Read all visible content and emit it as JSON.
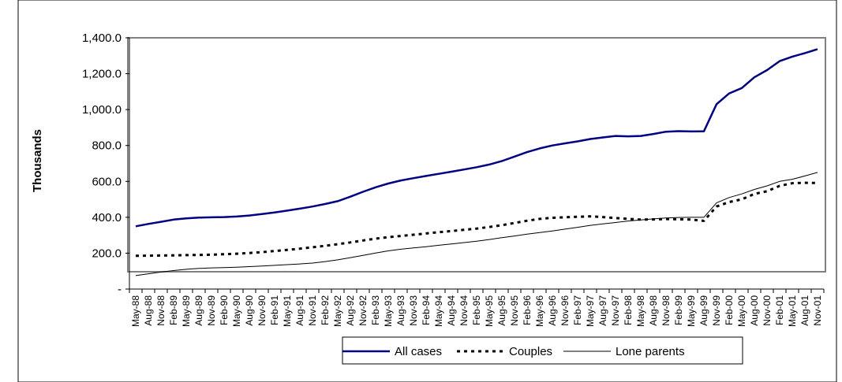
{
  "chart_data": {
    "type": "line",
    "title": "",
    "xlabel": "",
    "ylabel": "Thousands",
    "ylim": [
      0,
      1400
    ],
    "y_ticks": [
      0,
      200,
      400,
      600,
      800,
      1000,
      1200,
      1400
    ],
    "y_tick_labels": [
      "-",
      "200.0",
      "400.0",
      "600.0",
      "800.0",
      "1,000.0",
      "1,200.0",
      "1,400.0"
    ],
    "categories": [
      "May-88",
      "Aug-88",
      "Nov-88",
      "Feb-89",
      "May-89",
      "Aug-89",
      "Nov-89",
      "Feb-90",
      "May-90",
      "Aug-90",
      "Nov-90",
      "Feb-91",
      "May-91",
      "Aug-91",
      "Nov-91",
      "Feb-92",
      "May-92",
      "Aug-92",
      "Nov-92",
      "Feb-93",
      "May-93",
      "Aug-93",
      "Nov-93",
      "Feb-94",
      "May-94",
      "Aug-94",
      "Nov-94",
      "Feb-95",
      "May-95",
      "Aug-95",
      "Nov-95",
      "Feb-96",
      "May-96",
      "Aug-96",
      "Nov-96",
      "Feb-97",
      "May-97",
      "Aug-97",
      "Nov-97",
      "Feb-98",
      "May-98",
      "Aug-98",
      "Nov-98",
      "Feb-99",
      "May-99",
      "Aug-99",
      "Nov-99",
      "Feb-00",
      "May-00",
      "Aug-00",
      "Nov-00",
      "Feb-01",
      "May-01",
      "Aug-01",
      "Nov-01"
    ],
    "grid": false,
    "legend_position": "bottom",
    "series": [
      {
        "name": "All cases",
        "color": "#000080",
        "style": "solid-thick",
        "values": [
          350,
          363,
          375,
          387,
          394,
          398,
          400,
          401,
          404,
          410,
          418,
          427,
          437,
          448,
          460,
          474,
          490,
          515,
          542,
          567,
          588,
          605,
          618,
          630,
          642,
          654,
          666,
          679,
          694,
          713,
          738,
          763,
          784,
          800,
          812,
          823,
          836,
          845,
          853,
          851,
          853,
          864,
          877,
          880,
          878,
          879,
          1030,
          1090,
          1120,
          1180,
          1220,
          1270,
          1295,
          1315,
          1337
        ]
      },
      {
        "name": "Couples",
        "color": "#000000",
        "style": "dashed",
        "values": [
          185,
          186,
          187,
          188,
          189,
          190,
          192,
          194,
          197,
          201,
          206,
          212,
          218,
          225,
          233,
          241,
          250,
          260,
          271,
          281,
          289,
          296,
          303,
          310,
          317,
          323,
          330,
          337,
          346,
          356,
          368,
          381,
          391,
          397,
          400,
          403,
          405,
          401,
          396,
          391,
          387,
          388,
          390,
          389,
          387,
          380,
          460,
          485,
          500,
          530,
          545,
          575,
          590,
          592,
          591
        ]
      },
      {
        "name": "Lone parents",
        "color": "#000000",
        "style": "solid-thin",
        "values": [
          75,
          85,
          95,
          103,
          110,
          115,
          118,
          120,
          122,
          125,
          128,
          132,
          136,
          140,
          145,
          153,
          163,
          175,
          188,
          201,
          213,
          222,
          229,
          236,
          244,
          251,
          259,
          267,
          276,
          286,
          296,
          306,
          315,
          324,
          334,
          344,
          355,
          363,
          371,
          379,
          385,
          391,
          396,
          399,
          400,
          400,
          480,
          510,
          530,
          555,
          575,
          600,
          612,
          630,
          650
        ]
      }
    ]
  }
}
